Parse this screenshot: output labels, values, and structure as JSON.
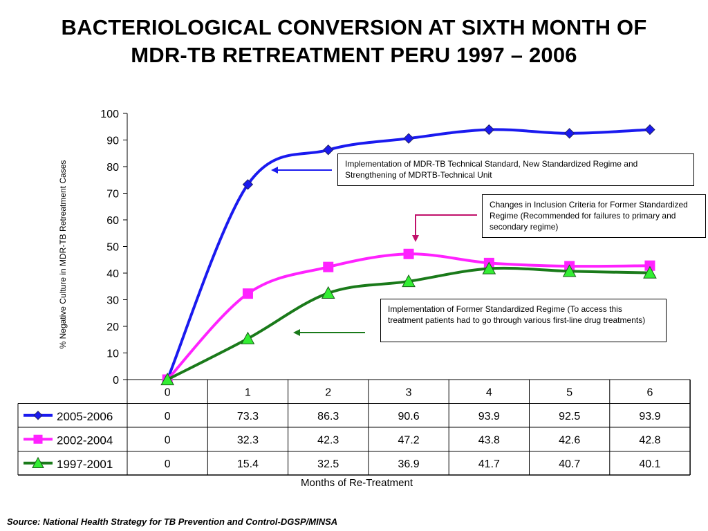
{
  "page": {
    "title_line1": "BACTERIOLOGICAL CONVERSION AT SIXTH MONTH OF",
    "title_line2": "MDR-TB RETREATMENT PERU 1997 – 2006",
    "source": "Source: National Health Strategy for TB Prevention and Control-DGSP/MINSA"
  },
  "annotations": {
    "callout_1": "Implementation of MDR-TB Technical Standard, New Standardized Regime and Strengthening of MDRTB-Technical Unit",
    "callout_2": "Changes in Inclusion Criteria for Former Standardized Regime (Recommended for failures to primary and secondary regime)",
    "callout_3": "Implementation of Former Standardized Regime (To access this treatment patients had to go through various first-line drug treatments)"
  },
  "colors": {
    "series_2005_2006": "#1a1aef",
    "series_2002_2004": "#ff22ff",
    "series_1997_2001": "#1a7a1a",
    "marker_1997_2001_fill": "#33ee33",
    "arrow_1": "#1a1aef",
    "arrow_2": "#c0106a",
    "arrow_3": "#1a7a1a"
  },
  "chart_data": {
    "type": "line",
    "title": "BACTERIOLOGICAL CONVERSION AT SIXTH MONTH OF MDR-TB RETREATMENT PERU 1997 – 2006",
    "xlabel": "Months of Re-Treatment",
    "ylabel": "%  Negative Culture in MDR-TB Retreatment Cases",
    "categories": [
      "0",
      "1",
      "2",
      "3",
      "4",
      "5",
      "6"
    ],
    "ylim": [
      0,
      100
    ],
    "yticks": [
      "0",
      "10",
      "20",
      "30",
      "40",
      "50",
      "60",
      "70",
      "80",
      "90",
      "100"
    ],
    "grid": false,
    "legend": "data-table",
    "series": [
      {
        "name": "2005-2006",
        "marker": "diamond",
        "values": [
          0,
          73.3,
          86.3,
          90.6,
          93.9,
          92.5,
          93.9
        ],
        "labels": [
          "0",
          "73.3",
          "86.3",
          "90.6",
          "93.9",
          "92.5",
          "93.9"
        ]
      },
      {
        "name": "2002-2004",
        "marker": "square",
        "values": [
          0,
          32.3,
          42.3,
          47.2,
          43.8,
          42.6,
          42.8
        ],
        "labels": [
          "0",
          "32.3",
          "42.3",
          "47.2",
          "43.8",
          "42.6",
          "42.8"
        ]
      },
      {
        "name": "1997-2001",
        "marker": "triangle",
        "values": [
          0,
          15.4,
          32.5,
          36.9,
          41.7,
          40.7,
          40.1
        ],
        "labels": [
          "0",
          "15.4",
          "32.5",
          "36.9",
          "41.7",
          "40.7",
          "40.1"
        ]
      }
    ]
  }
}
